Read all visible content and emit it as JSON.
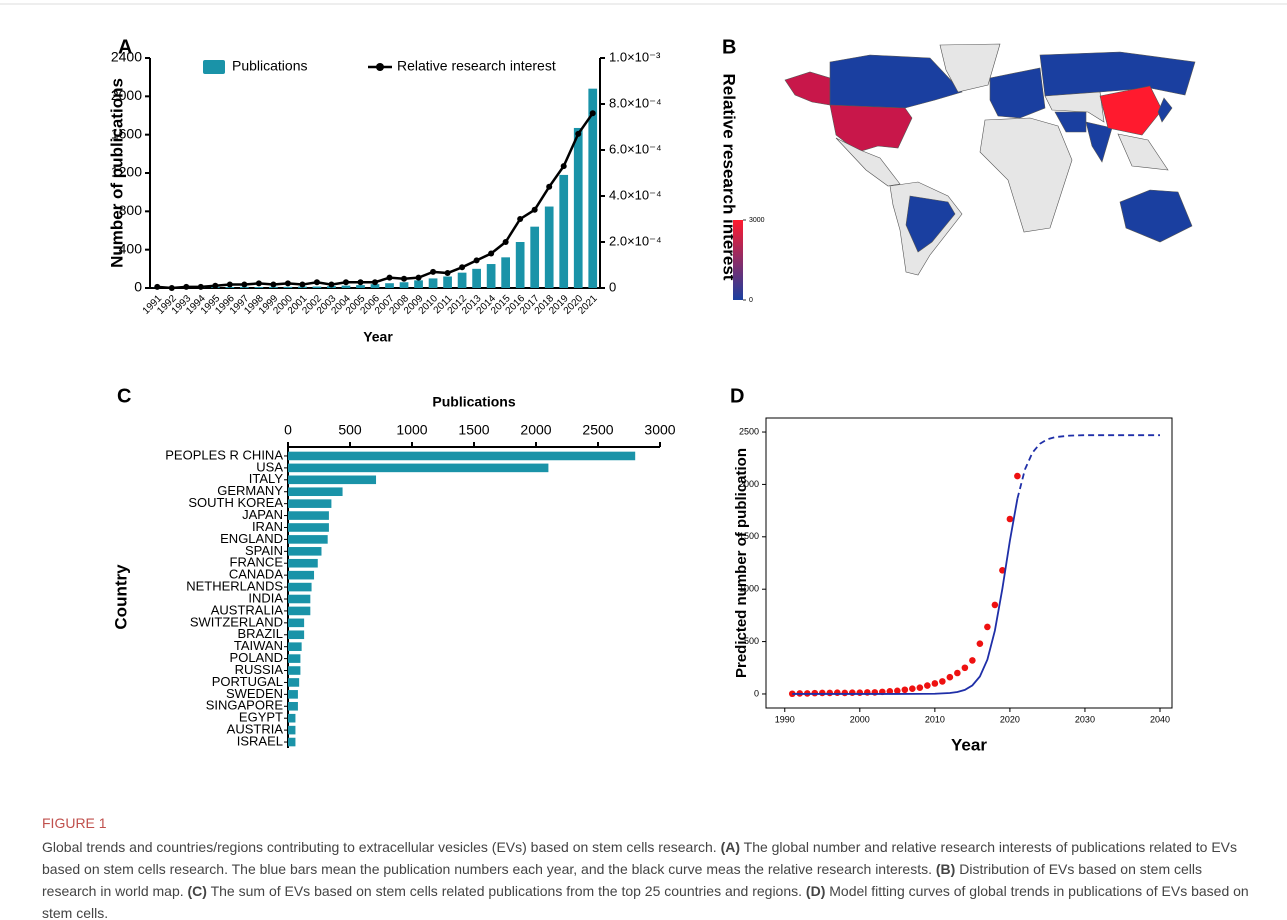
{
  "chart_data": [
    {
      "type": "combo",
      "label": "A",
      "xlabel": "Year",
      "ylabel": "Number of publications",
      "y2label": "Relative research interest",
      "categories": [
        "1991",
        "1992",
        "1993",
        "1994",
        "1995",
        "1996",
        "1997",
        "1998",
        "1999",
        "2000",
        "2001",
        "2002",
        "2003",
        "2004",
        "2005",
        "2006",
        "2007",
        "2008",
        "2009",
        "2010",
        "2011",
        "2012",
        "2013",
        "2014",
        "2015",
        "2016",
        "2017",
        "2018",
        "2019",
        "2020",
        "2021"
      ],
      "series": [
        {
          "name": "Publications",
          "type": "bar",
          "color": "#1a93a8",
          "values": [
            2,
            5,
            5,
            8,
            10,
            10,
            12,
            10,
            12,
            12,
            15,
            15,
            20,
            25,
            30,
            40,
            50,
            60,
            80,
            100,
            120,
            160,
            200,
            250,
            320,
            480,
            640,
            850,
            1180,
            1670,
            2080
          ]
        },
        {
          "name": "Relative research interest",
          "type": "line",
          "color": "#000000",
          "axis": "y2",
          "values": [
            5e-06,
            0,
            5e-06,
            5e-06,
            1e-05,
            1.5e-05,
            1.5e-05,
            2e-05,
            1.5e-05,
            2e-05,
            1.5e-05,
            2.5e-05,
            1.5e-05,
            2.5e-05,
            2.5e-05,
            2.5e-05,
            4.5e-05,
            4e-05,
            4.5e-05,
            7e-05,
            6.5e-05,
            9e-05,
            0.00012,
            0.00015,
            0.0002,
            0.0003,
            0.00034,
            0.00044,
            0.00053,
            0.00067,
            0.00076
          ]
        }
      ],
      "ylim": [
        0,
        2400
      ],
      "yticks": [
        0,
        400,
        800,
        1200,
        1600,
        2000,
        2400
      ],
      "y2lim": [
        0,
        0.001
      ],
      "y2ticks": [
        0,
        {
          "value": 0.0002,
          "label": "2.0×10⁻⁴"
        },
        {
          "value": 0.0004,
          "label": "4.0×10⁻⁴"
        },
        {
          "value": 0.0006,
          "label": "6.0×10⁻⁴"
        },
        {
          "value": 0.0008,
          "label": "8.0×10⁻⁴"
        },
        {
          "value": 0.001,
          "label": "1.0×10⁻³"
        }
      ]
    },
    {
      "type": "map",
      "label": "B",
      "colors": [
        "#1a3fa0",
        "#ff1a2e"
      ],
      "clim": [
        0,
        3000
      ],
      "cticks": [
        0,
        3000
      ]
    },
    {
      "type": "barh",
      "label": "C",
      "xlabel": "Publications",
      "ylabel": "Country",
      "categories": [
        "PEOPLES R CHINA",
        "USA",
        "ITALY",
        "GERMANY",
        "SOUTH KOREA",
        "JAPAN",
        "IRAN",
        "ENGLAND",
        "SPAIN",
        "FRANCE",
        "CANADA",
        "NETHERLANDS",
        "INDIA",
        "AUSTRALIA",
        "SWITZERLAND",
        "BRAZIL",
        "TAIWAN",
        "POLAND",
        "RUSSIA",
        "PORTUGAL",
        "SWEDEN",
        "SINGAPORE",
        "EGYPT",
        "AUSTRIA",
        "ISRAEL"
      ],
      "values": [
        2800,
        2100,
        710,
        440,
        350,
        330,
        330,
        320,
        270,
        240,
        210,
        190,
        180,
        180,
        130,
        130,
        110,
        100,
        100,
        90,
        80,
        80,
        60,
        60,
        60
      ],
      "color": "#1a93a8",
      "xlim": [
        0,
        3000
      ],
      "xticks": [
        0,
        500,
        1000,
        1500,
        2000,
        2500,
        3000
      ]
    },
    {
      "type": "scatter",
      "label": "D",
      "xlabel": "Year",
      "ylabel": "Predicted number of publication",
      "xlim": [
        1987.5,
        2041.6
      ],
      "ylim": [
        -134,
        2634
      ],
      "xticks": [
        1990,
        2000,
        2010,
        2020,
        2030,
        2040
      ],
      "yticks": [
        0,
        500,
        1000,
        1500,
        2000,
        2500
      ],
      "series": [
        {
          "type": "scatter",
          "color": "#ee1111",
          "x": [
            1991,
            1992,
            1993,
            1994,
            1995,
            1996,
            1997,
            1998,
            1999,
            2000,
            2001,
            2002,
            2003,
            2004,
            2005,
            2006,
            2007,
            2008,
            2009,
            2010,
            2011,
            2012,
            2013,
            2014,
            2015,
            2016,
            2017,
            2018,
            2019,
            2020,
            2021
          ],
          "values": [
            2,
            5,
            5,
            8,
            10,
            10,
            12,
            10,
            12,
            12,
            15,
            15,
            20,
            25,
            30,
            40,
            50,
            60,
            80,
            100,
            120,
            160,
            200,
            250,
            320,
            480,
            640,
            850,
            1180,
            1670,
            2080
          ]
        },
        {
          "type": "line",
          "color": "#1f2fa8",
          "x": [
            1991,
            2000,
            2005,
            2010,
            2012,
            2013,
            2014,
            2015,
            2016,
            2017,
            2018,
            2019,
            2020,
            2021
          ],
          "values": [
            0,
            0,
            0,
            2,
            9,
            19,
            39,
            82,
            167,
            328,
            605,
            1006,
            1464,
            1864
          ]
        },
        {
          "type": "line",
          "dash": true,
          "color": "#1f2fa8",
          "x": [
            2021,
            2022,
            2023,
            2024,
            2025,
            2026,
            2028,
            2030,
            2035,
            2040
          ],
          "values": [
            1864,
            2142,
            2303,
            2388,
            2431,
            2451,
            2466,
            2470,
            2470,
            2470
          ]
        }
      ]
    }
  ],
  "figure": {
    "label": "FIGURE 1",
    "caption": [
      {
        "text": "Global trends and countries/regions contributing to extracellular vesicles (EVs) based on stem cells research. ",
        "bold": false
      },
      {
        "text": "(A)",
        "bold": true
      },
      {
        "text": " The global number and relative research interests of publications related to EVs based on stem cells research. The blue bars mean the publication numbers each year, and the black curve meas the relative research interests. ",
        "bold": false
      },
      {
        "text": "(B)",
        "bold": true
      },
      {
        "text": " Distribution of EVs based on stem cells research in world map. ",
        "bold": false
      },
      {
        "text": "(C)",
        "bold": true
      },
      {
        "text": " The sum of EVs based on stem cells related publications from the top 25 countries and regions. ",
        "bold": false
      },
      {
        "text": "(D)",
        "bold": true
      },
      {
        "text": " Model fitting curves of global trends in publications of EVs based on stem cells.",
        "bold": false
      }
    ]
  }
}
